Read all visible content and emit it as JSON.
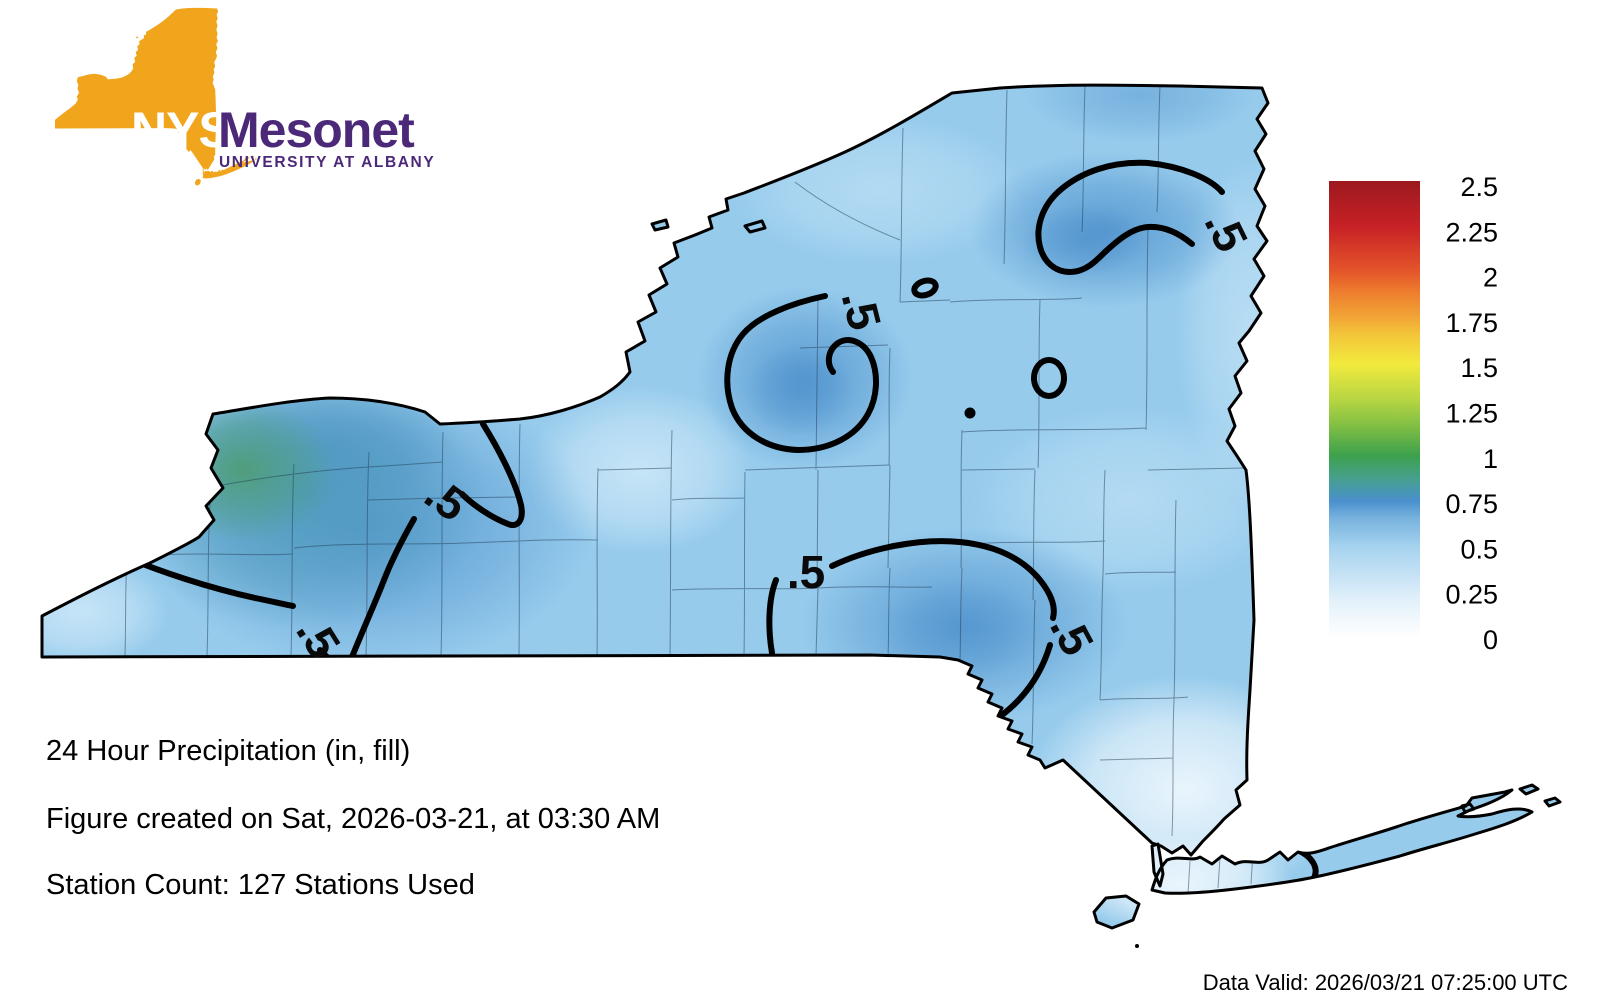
{
  "logo": {
    "acronym": "NYS",
    "name": "Mesonet",
    "affiliation": "UNIVERSITY AT ALBANY",
    "state_color": "#f0a51d",
    "brand_color": "#4b2878"
  },
  "map": {
    "contour_label": ".5"
  },
  "colorbar": {
    "min": 0,
    "max": 2.5,
    "ticks": [
      "2.5",
      "2.25",
      "2",
      "1.75",
      "1.5",
      "1.25",
      "1",
      "0.75",
      "0.5",
      "0.25",
      "0"
    ],
    "colors": {
      "0": "#ffffff",
      "0.25": "#cfe7f7",
      "0.5": "#a5d2ef",
      "0.75": "#4a90ce",
      "1": "#3da14c",
      "1.25": "#b5d542",
      "1.5": "#f2ea3d",
      "1.75": "#f2a636",
      "2": "#e4572a",
      "2.25": "#c72126",
      "2.5": "#9c191e"
    }
  },
  "footer": {
    "line1": "24 Hour Precipitation (in, fill)",
    "line2": "Figure created on Sat, 2026-03-21, at 03:30 AM",
    "line3": "Station Count: 127 Stations Used"
  },
  "data_valid": "Data Valid: 2026/03/21 07:25:00 UTC"
}
